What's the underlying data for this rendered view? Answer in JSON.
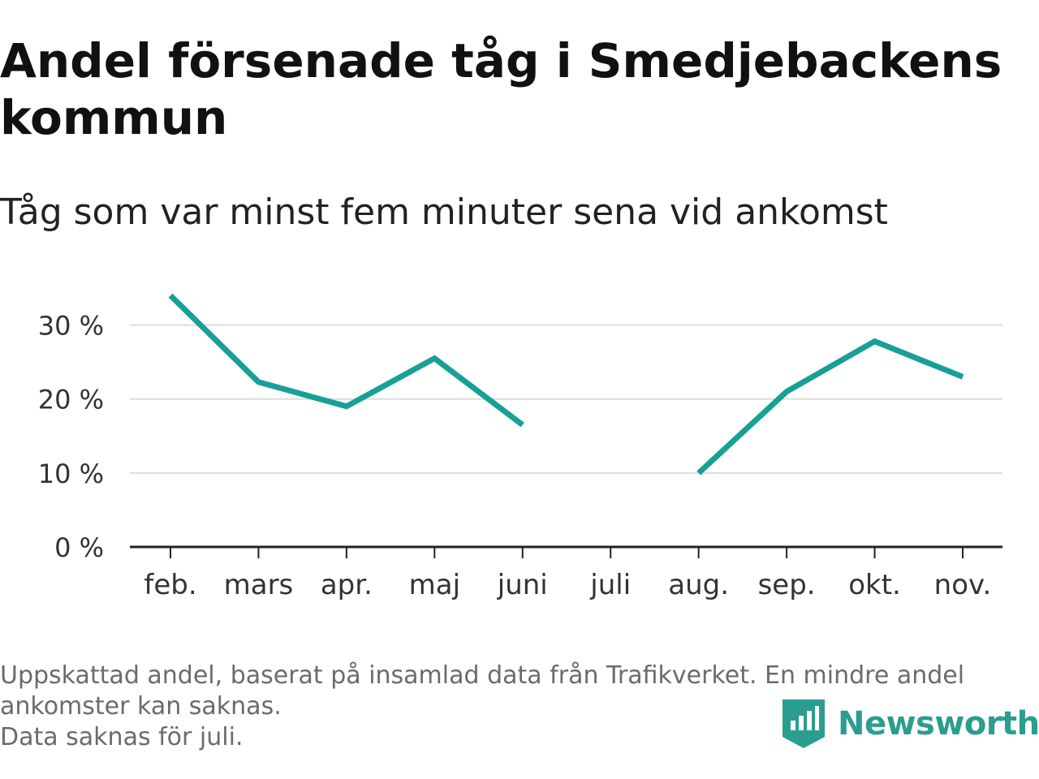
{
  "title": "Andel försenade tåg i Smedjebackens kommun",
  "subtitle": "Tåg som var minst fem minuter sena vid ankomst",
  "footnote": {
    "line1": "Uppskattad andel, baserat på insamlad data från Trafikverket. En mindre andel ankomster kan saknas.",
    "line2": "Data saknas för juli."
  },
  "brand": {
    "name": "Newsworthy",
    "icon": "newsworthy-logo-icon",
    "color": "#2a9d8f"
  },
  "colors": {
    "line": "#18a096",
    "grid": "#dddddd",
    "axis": "#222222"
  },
  "chart_data": {
    "type": "line",
    "categories": [
      "feb.",
      "mars",
      "apr.",
      "maj",
      "juni",
      "juli",
      "aug.",
      "sep.",
      "okt.",
      "nov."
    ],
    "series": [
      {
        "values": [
          34,
          22.3,
          19,
          25.5,
          16.5,
          null,
          10,
          21,
          27.8,
          23
        ]
      }
    ],
    "ylim": [
      0,
      35
    ],
    "yticks": [
      0,
      10,
      20,
      30
    ],
    "ytick_labels": [
      "0 %",
      "10 %",
      "20 %",
      "30 %"
    ],
    "xlabel": "",
    "ylabel": "",
    "grid": true,
    "legend": "none"
  }
}
